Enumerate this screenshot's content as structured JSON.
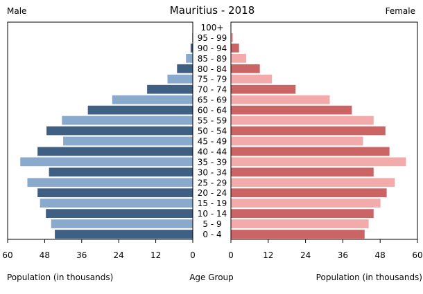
{
  "chart_data": {
    "type": "bar",
    "title": "Mauritius - 2018",
    "left_label": "Male",
    "right_label": "Female",
    "xlabel_left": "Population (in thousands)",
    "xlabel_center": "Age Group",
    "xlabel_right": "Population (in thousands)",
    "xlim": [
      0,
      60
    ],
    "ticks": [
      "0",
      "12",
      "24",
      "36",
      "48",
      "60"
    ],
    "categories": [
      "0 - 4",
      "5 - 9",
      "10 - 14",
      "15 - 19",
      "20 - 24",
      "25 - 29",
      "30 - 34",
      "35 - 39",
      "40 - 44",
      "45 - 49",
      "50 - 54",
      "55 - 59",
      "60 - 64",
      "65 - 69",
      "70 - 74",
      "75 - 79",
      "80 - 84",
      "85 - 89",
      "90 - 94",
      "95 - 99",
      "100+"
    ],
    "series": [
      {
        "name": "Male",
        "values": [
          44.7,
          45.9,
          47.6,
          49.5,
          50.3,
          53.6,
          46.6,
          55.9,
          50.3,
          42.0,
          47.4,
          42.4,
          34.0,
          26.1,
          14.8,
          8.2,
          5.1,
          2.2,
          0.7,
          0.2,
          0.1
        ]
      },
      {
        "name": "Female",
        "values": [
          43.0,
          44.3,
          45.9,
          48.1,
          50.1,
          52.7,
          45.9,
          56.3,
          51.0,
          42.5,
          49.7,
          45.9,
          38.9,
          31.8,
          20.8,
          13.2,
          9.3,
          4.9,
          2.6,
          0.7,
          0.1
        ]
      }
    ],
    "colors": {
      "male_dark": "#3f5f83",
      "male_light": "#8aaacd",
      "female_dark": "#cb6464",
      "female_light": "#f2aaaa",
      "axis": "#000000"
    }
  }
}
